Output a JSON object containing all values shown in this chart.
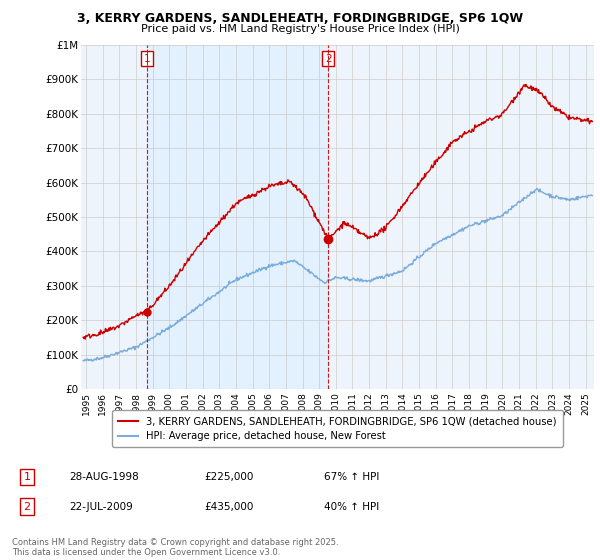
{
  "title_line1": "3, KERRY GARDENS, SANDLEHEATH, FORDINGBRIDGE, SP6 1QW",
  "title_line2": "Price paid vs. HM Land Registry's House Price Index (HPI)",
  "ylim": [
    0,
    1000000
  ],
  "yticks": [
    0,
    100000,
    200000,
    300000,
    400000,
    500000,
    600000,
    700000,
    800000,
    900000,
    1000000
  ],
  "ytick_labels": [
    "£0",
    "£100K",
    "£200K",
    "£300K",
    "£400K",
    "£500K",
    "£600K",
    "£700K",
    "£800K",
    "£900K",
    "£1M"
  ],
  "xlim_start": 1994.7,
  "xlim_end": 2025.5,
  "xticks": [
    1995,
    1996,
    1997,
    1998,
    1999,
    2000,
    2001,
    2002,
    2003,
    2004,
    2005,
    2006,
    2007,
    2008,
    2009,
    2010,
    2011,
    2012,
    2013,
    2014,
    2015,
    2016,
    2017,
    2018,
    2019,
    2020,
    2021,
    2022,
    2023,
    2024,
    2025
  ],
  "property_color": "#cc0000",
  "hpi_color": "#7aaddb",
  "vline_color": "#cc0000",
  "grid_color": "#cccccc",
  "shade_color": "#ddeeff",
  "legend_label_property": "3, KERRY GARDENS, SANDLEHEATH, FORDINGBRIDGE, SP6 1QW (detached house)",
  "legend_label_hpi": "HPI: Average price, detached house, New Forest",
  "sale1_x": 1998.65,
  "sale1_y": 225000,
  "sale2_x": 2009.55,
  "sale2_y": 435000,
  "table_entries": [
    {
      "num": "1",
      "date": "28-AUG-1998",
      "price": "£225,000",
      "hpi": "67% ↑ HPI"
    },
    {
      "num": "2",
      "date": "22-JUL-2009",
      "price": "£435,000",
      "hpi": "40% ↑ HPI"
    }
  ],
  "footnote": "Contains HM Land Registry data © Crown copyright and database right 2025.\nThis data is licensed under the Open Government Licence v3.0.",
  "background_color": "#ffffff"
}
